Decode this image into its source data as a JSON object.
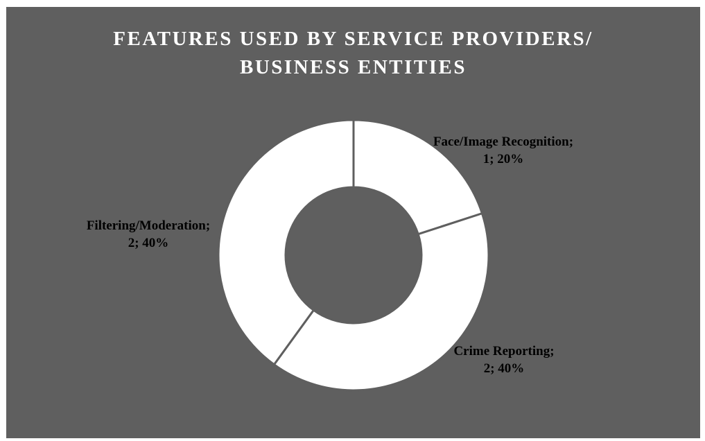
{
  "chart_data": {
    "type": "pie",
    "variant": "donut",
    "title_lines": [
      "FEATURES USED BY SERVICE PROVIDERS/",
      "BUSINESS ENTITIES"
    ],
    "categories": [
      "Face/Image Recognition",
      "Crime Reporting",
      "Filtering/Moderation"
    ],
    "values": [
      1,
      2,
      2
    ],
    "percents": [
      "20%",
      "40%",
      "40%"
    ],
    "labels": [
      {
        "line1": "Face/Image Recognition;",
        "line2": "1; 20%"
      },
      {
        "line1": "Crime Reporting;",
        "line2": "2; 40%"
      },
      {
        "line1": "Filtering/Moderation;",
        "line2": "2; 40%"
      }
    ],
    "legend": "none",
    "colors": {
      "background": "#5f5f5f",
      "slice_fill": "#ffffff",
      "slice_border": "#5f5f5f",
      "title": "#ffffff",
      "label": "#000000"
    }
  }
}
